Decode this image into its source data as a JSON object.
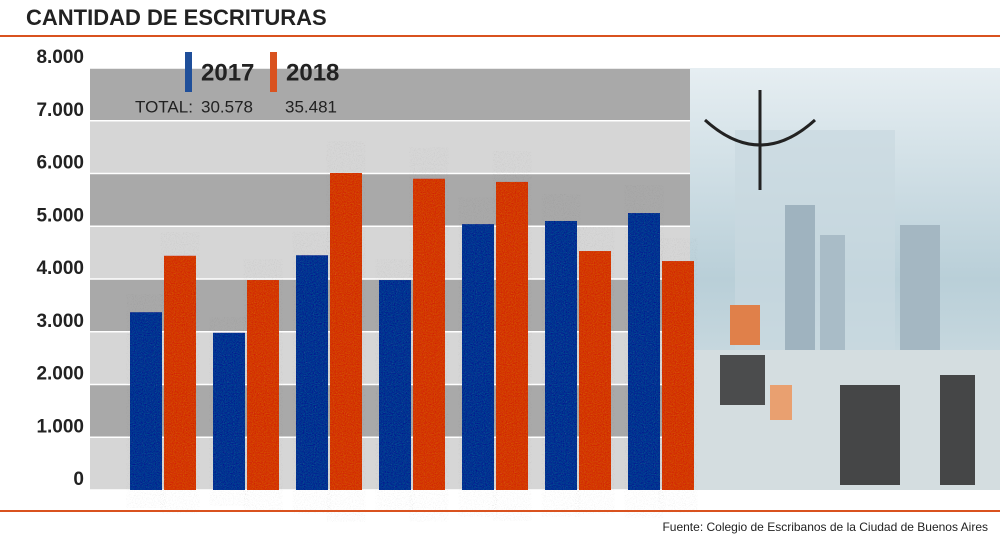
{
  "chart_data": {
    "type": "bar",
    "title": "CANTIDAD DE ESCRITURAS",
    "source": "Fuente: Colegio de Escribanos de la Ciudad de Buenos Aires",
    "total_label": "TOTAL:",
    "categories": [
      null,
      null,
      null,
      null,
      null,
      null,
      null
    ],
    "series": [
      {
        "name": "2017",
        "color": "#1f4f9a",
        "values": [
          3370,
          2980,
          4450,
          3980,
          5040,
          5100,
          5250
        ],
        "total": {
          "value": 30578,
          "label": "30.578"
        }
      },
      {
        "name": "2018",
        "color": "#d9521f",
        "values": [
          4440,
          3980,
          6010,
          5900,
          5840,
          4530,
          4340
        ],
        "total": {
          "value": 35481,
          "label": "35.481"
        }
      }
    ],
    "ylim": [
      0,
      8000
    ],
    "yticks": [
      0,
      {
        "value": 1000,
        "label": "1.000"
      },
      {
        "value": 2000,
        "label": "2.000"
      },
      {
        "value": 3000,
        "label": "3.000"
      },
      {
        "value": 4000,
        "label": "4.000"
      },
      {
        "value": 5000,
        "label": "5.000"
      },
      {
        "value": 6000,
        "label": "6.000"
      },
      {
        "value": 7000,
        "label": "7.000"
      },
      {
        "value": 8000,
        "label": "8.000"
      }
    ],
    "grid": true
  }
}
